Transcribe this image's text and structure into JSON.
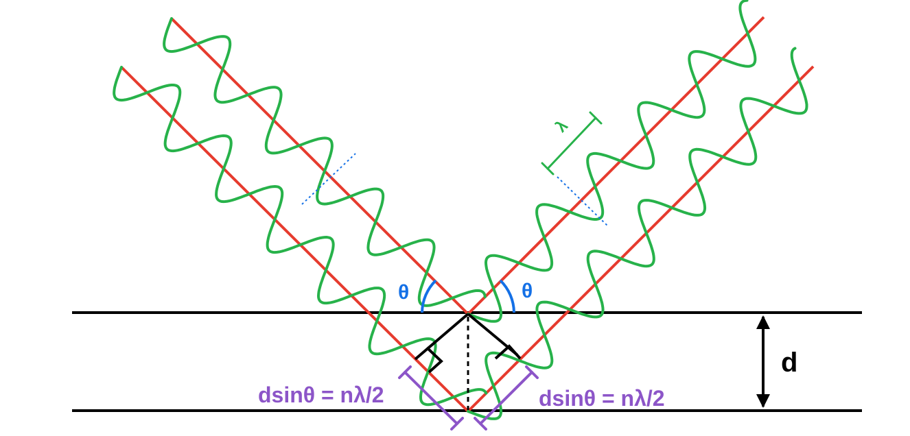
{
  "labels": {
    "theta_left": "θ",
    "theta_right": "θ",
    "wavelength": "λ",
    "spacing": "d",
    "path_left": "dsinθ = nλ/2",
    "path_right": "dsinθ = nλ/2"
  },
  "colors": {
    "plane": "#000000",
    "ray": "#e63b2e",
    "wave": "#27b24a",
    "angle": "#1470e6",
    "path": "#8c55c8",
    "wavefront": "#1470e6"
  }
}
